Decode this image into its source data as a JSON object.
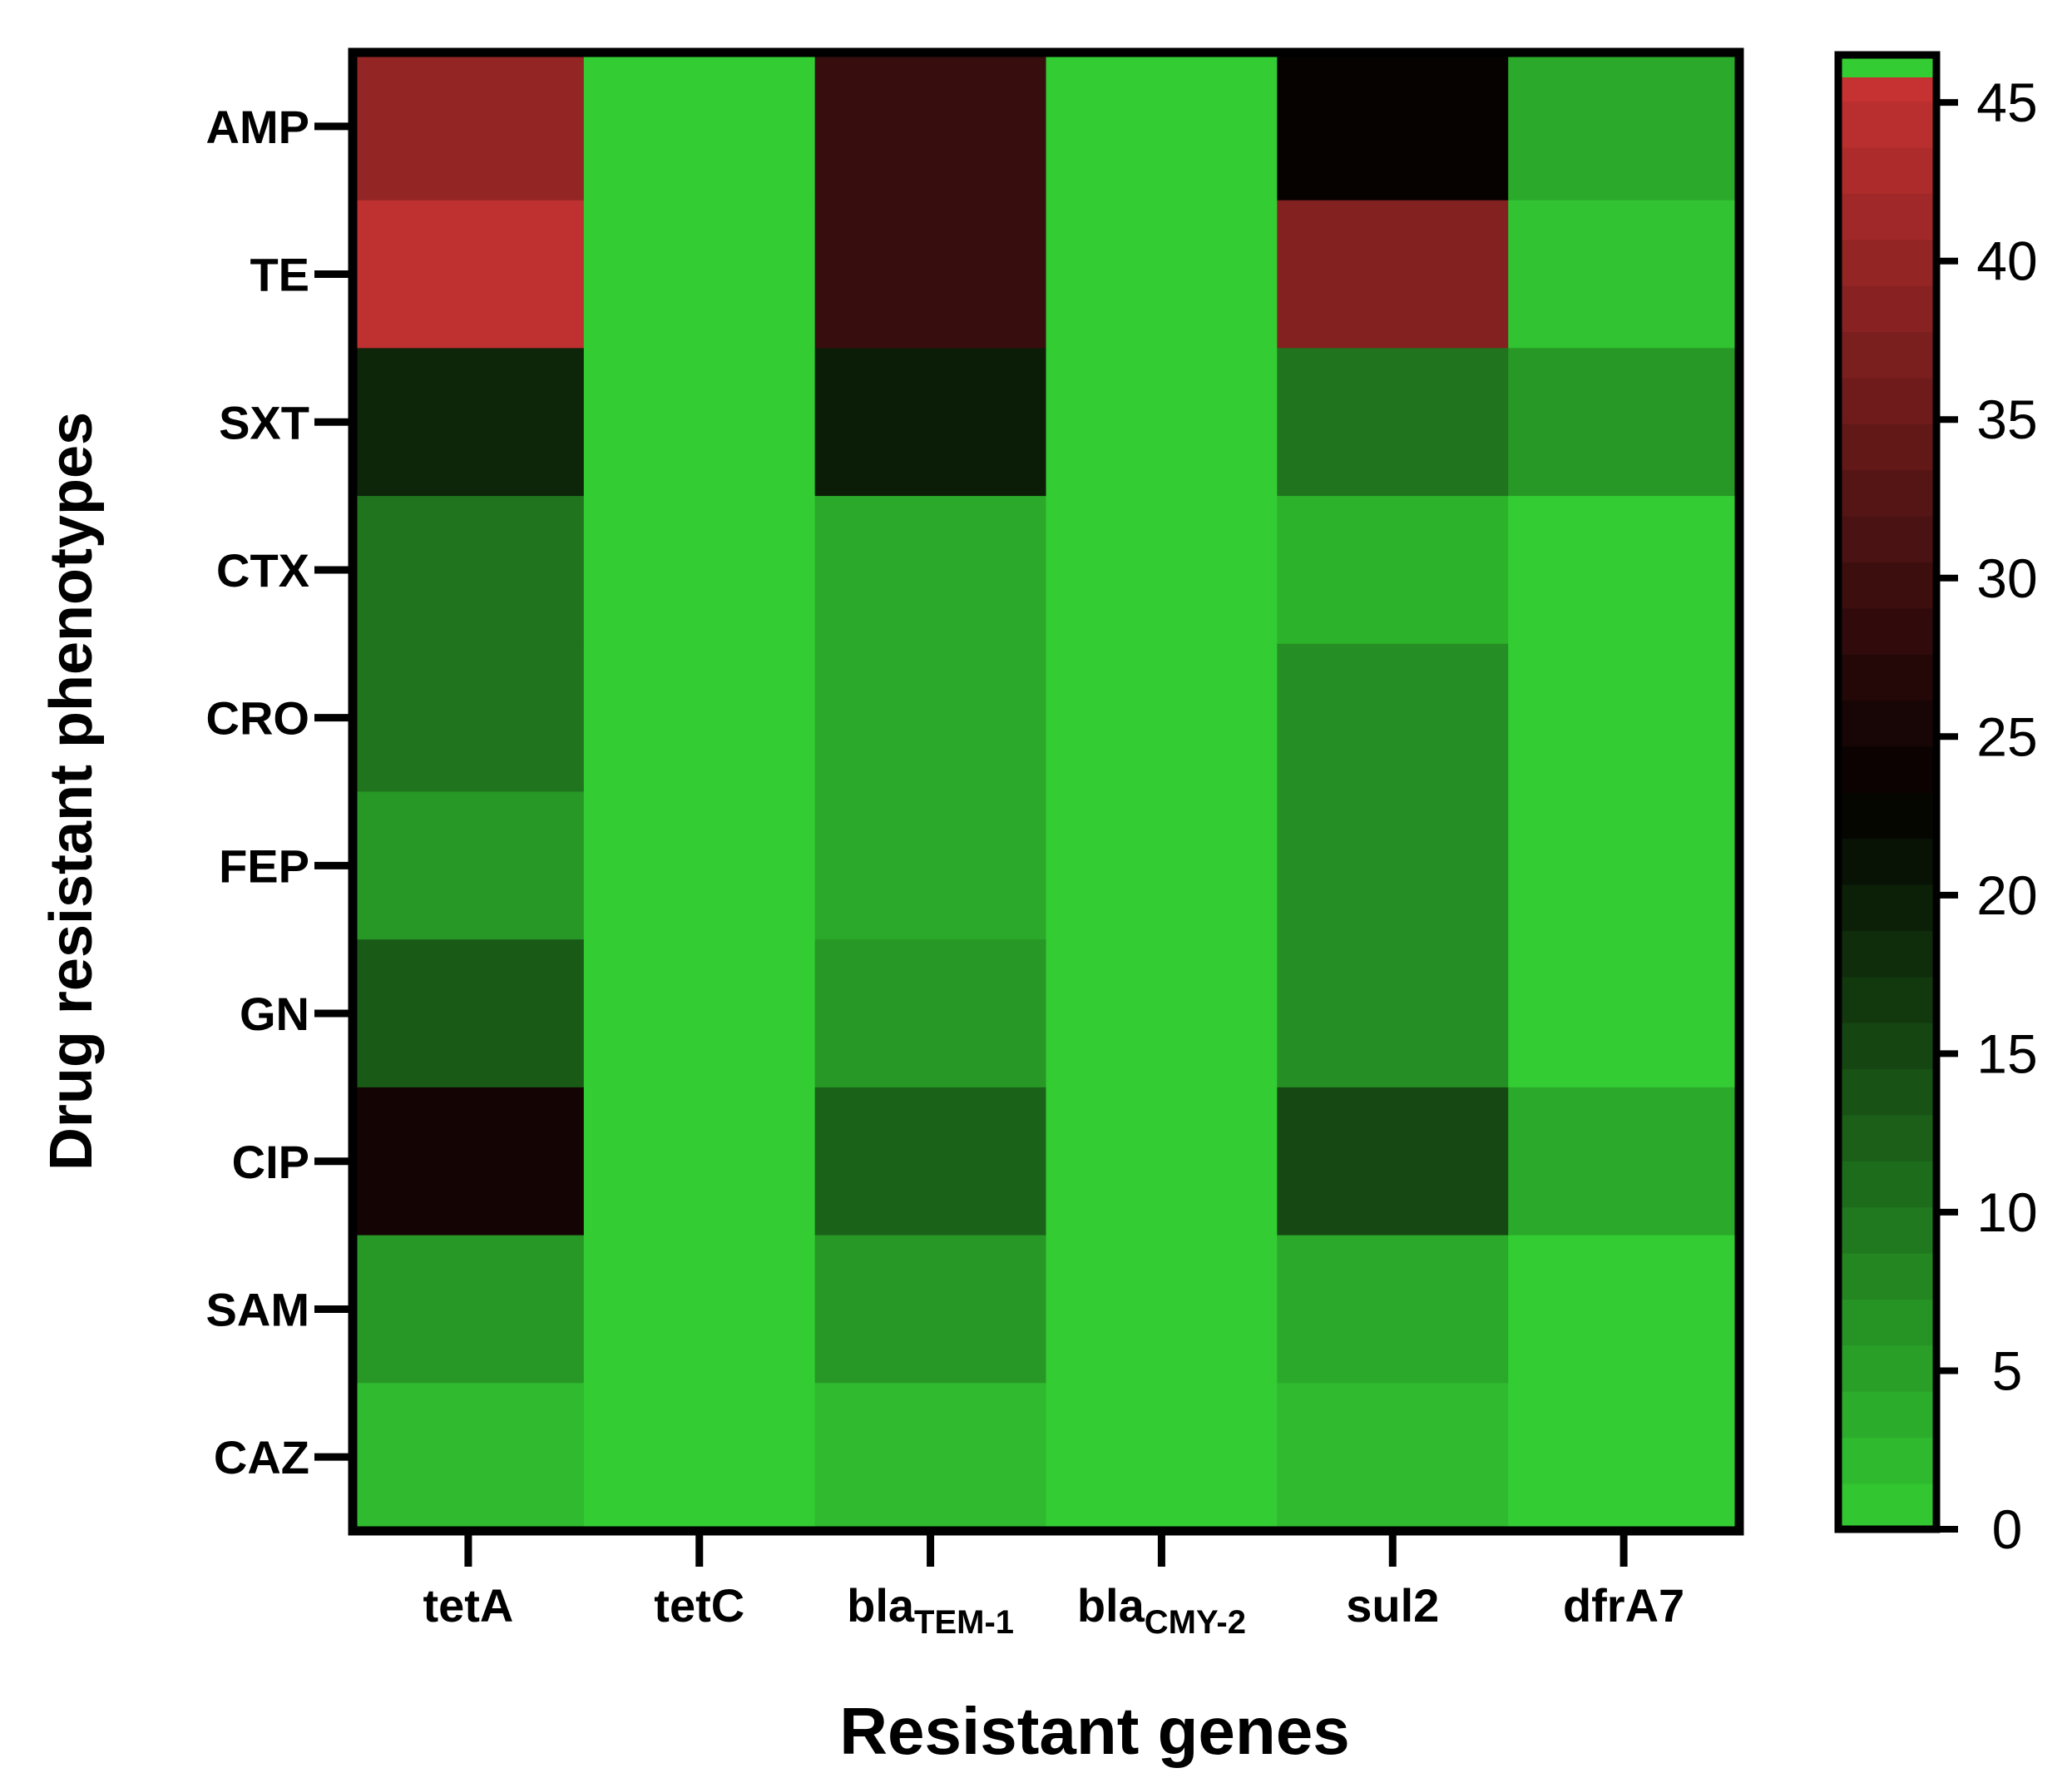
{
  "chart_data": {
    "type": "heatmap",
    "title": "",
    "xlabel": "Resistant genes",
    "ylabel": "Drug resistant phenotypes",
    "x_categories": [
      {
        "base": "tetA",
        "sub": ""
      },
      {
        "base": "tetC",
        "sub": ""
      },
      {
        "base": "bla",
        "sub": "TEM-1"
      },
      {
        "base": "bla",
        "sub": "CMY-2"
      },
      {
        "base": "sul2",
        "sub": ""
      },
      {
        "base": "dfrA7",
        "sub": ""
      }
    ],
    "y_categories": [
      "AMP",
      "TE",
      "SXT",
      "CTX",
      "CRO",
      "FEP",
      "GN",
      "CIP",
      "SAM",
      "CAZ"
    ],
    "values": [
      [
        40,
        0,
        29,
        0,
        23,
        4
      ],
      [
        45,
        0,
        29,
        0,
        38,
        1
      ],
      [
        19,
        0,
        20,
        0,
        10,
        6
      ],
      [
        10,
        0,
        4,
        0,
        3,
        0
      ],
      [
        10,
        0,
        4,
        0,
        7,
        0
      ],
      [
        6,
        0,
        4,
        0,
        7,
        0
      ],
      [
        13,
        0,
        6,
        0,
        7,
        0
      ],
      [
        25,
        0,
        12,
        0,
        15,
        4
      ],
      [
        6,
        0,
        6,
        0,
        4,
        0
      ],
      [
        2,
        0,
        2,
        0,
        2,
        0
      ]
    ],
    "colorbar": {
      "min": 0,
      "max": 46.5,
      "ticks": [
        "0",
        "5",
        "10",
        "15",
        "20",
        "25",
        "30",
        "35",
        "40",
        "45"
      ],
      "tick_values": [
        0,
        5,
        10,
        15,
        20,
        25,
        30,
        35,
        40,
        45
      ],
      "levels": 32,
      "overflow_color": "#33cc33"
    },
    "color_stops": [
      {
        "value": 0,
        "color": "#33cc33"
      },
      {
        "value": 23.2,
        "color": "#050000"
      },
      {
        "value": 46.5,
        "color": "#cc3333"
      }
    ]
  }
}
